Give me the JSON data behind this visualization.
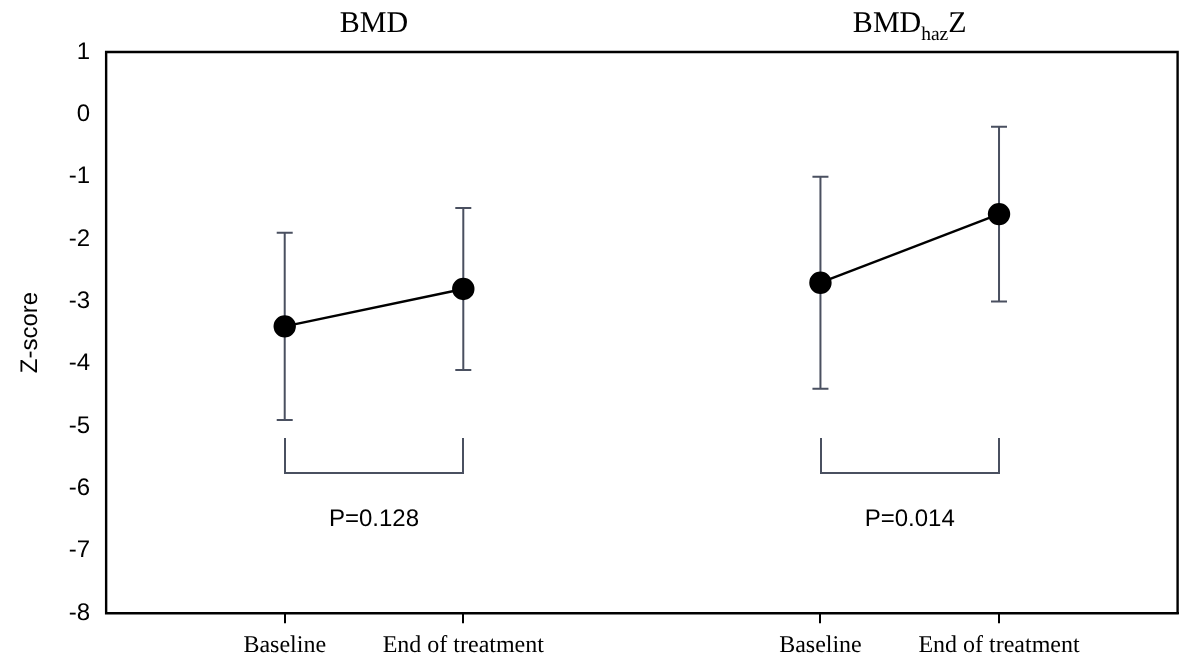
{
  "chart_data": {
    "type": "line",
    "ylabel": "Z-score",
    "categories": [
      null,
      "Baseline",
      "End of treatment",
      null,
      "Baseline",
      "End of treatment",
      null
    ],
    "series": [
      {
        "color": "#000000",
        "values": [
          null,
          -3.4,
          -2.8,
          null,
          null,
          null,
          null
        ],
        "errors": [
          null,
          [
            -4.9,
            -1.9
          ],
          [
            -4.1,
            -1.5
          ],
          null,
          null,
          null,
          null
        ]
      },
      {
        "color": "#000000",
        "values": [
          null,
          null,
          null,
          null,
          -2.7,
          -1.6,
          null
        ],
        "errors": [
          null,
          null,
          null,
          null,
          [
            -4.4,
            -1.0
          ],
          [
            -3.0,
            -0.2
          ],
          null
        ]
      }
    ],
    "annotations": [
      "BMD",
      "BMD$_{haz}$Z",
      "P=0.128",
      "P=0.014"
    ],
    "ylim": [
      -8,
      1
    ],
    "yticks": [
      -8,
      -7,
      -6,
      -5,
      -4,
      -3,
      -2,
      -1,
      0,
      1
    ],
    "grid": false,
    "legend": false,
    "marker": "circle",
    "line_style": "solid"
  }
}
